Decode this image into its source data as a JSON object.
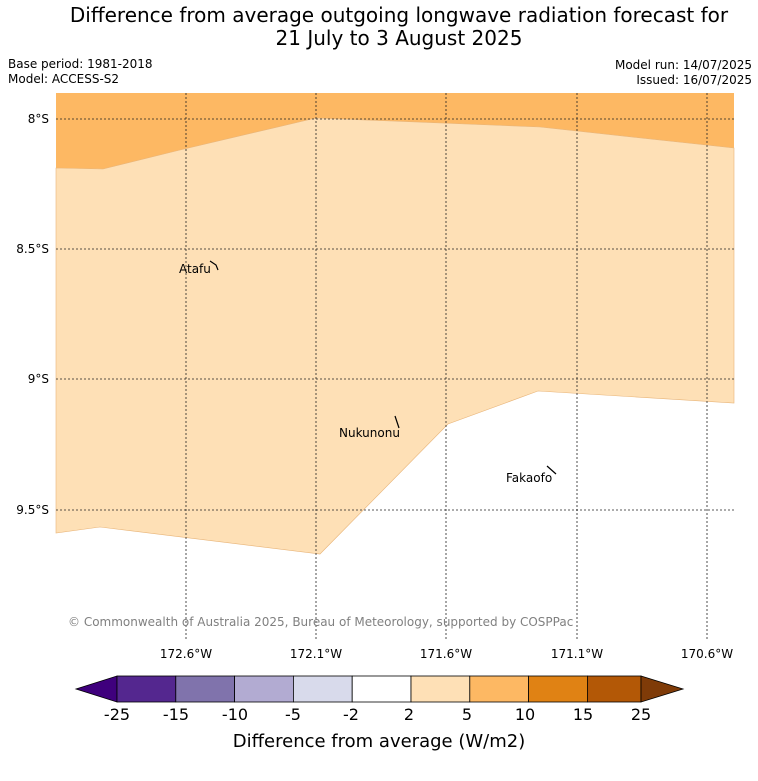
{
  "title": {
    "line1": "Difference from average outgoing longwave radiation forecast for",
    "line2": "21 July to 3 August 2025"
  },
  "meta": {
    "base_period": "Base period: 1981-2018",
    "model": "Model: ACCESS-S2",
    "model_run": "Model run: 14/07/2025",
    "issued": "Issued: 16/07/2025"
  },
  "map": {
    "lat_labels": [
      "8°S",
      "8.5°S",
      "9°S",
      "9.5°S"
    ],
    "lon_labels": [
      "172.6°W",
      "172.1°W",
      "171.6°W",
      "171.1°W",
      "170.6°W"
    ],
    "places": [
      "Atafu",
      "Nukunonu",
      "Fakaofo"
    ],
    "copyright": "© Commonwealth of Australia 2025, Bureau of Meteorology, supported by COSPPac"
  },
  "colorbar": {
    "label": "Difference from average (W/m2)",
    "ticks": [
      "-25",
      "-15",
      "-10",
      "-5",
      "-2",
      "2",
      "5",
      "10",
      "15",
      "25"
    ],
    "colors": [
      "#3f007d",
      "#54278f",
      "#8073ac",
      "#b2abd2",
      "#d8daeb",
      "#ffffff",
      "#fee0b6",
      "#fdb863",
      "#e08214",
      "#b35806",
      "#7f3b08"
    ]
  },
  "legend_colors": {
    "band_5_10": "#fdb863",
    "band_2_5": "#fee0b6",
    "neutral": "#ffffff"
  }
}
